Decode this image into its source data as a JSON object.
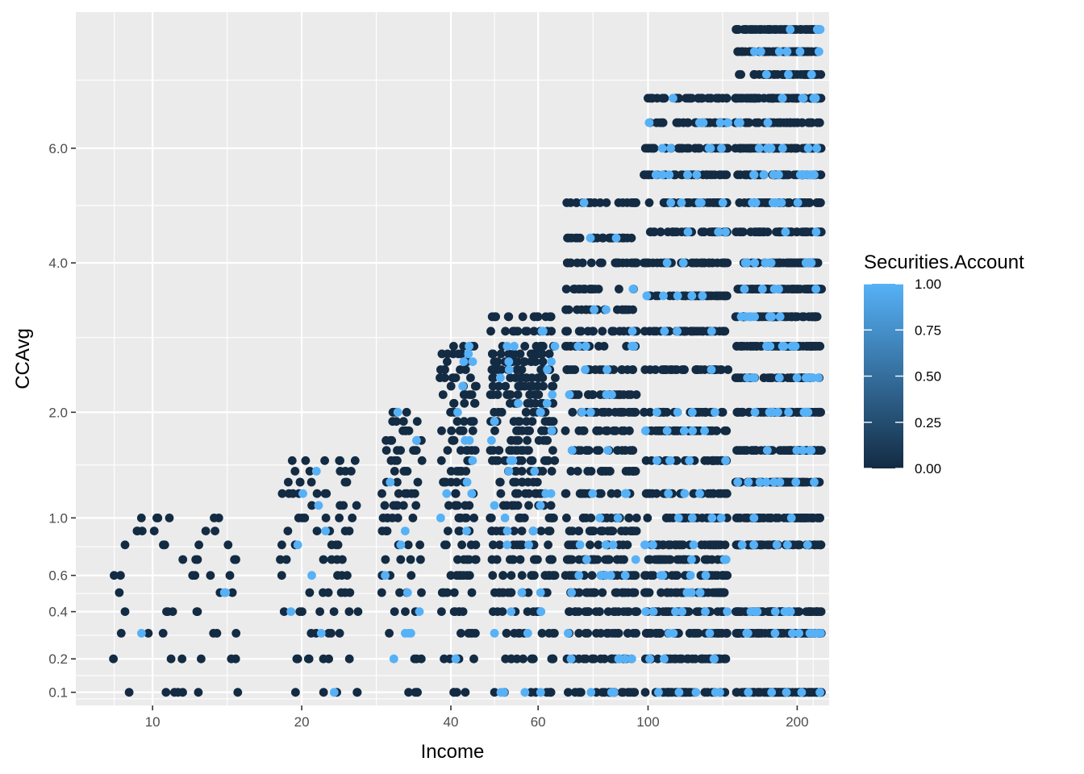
{
  "chart_data": {
    "type": "scatter",
    "xlabel": "Income",
    "ylabel": "CCAvg",
    "x_scale": "log10",
    "y_scale": "sqrt",
    "xlim": [
      7.0,
      232
    ],
    "ylim": [
      0.07,
      8.9
    ],
    "x_ticks": [
      10,
      20,
      40,
      60,
      100,
      200
    ],
    "x_tick_labels": [
      "10",
      "20",
      "40",
      "60",
      "100",
      "200"
    ],
    "y_ticks": [
      0.1,
      0.2,
      0.4,
      0.6,
      1.0,
      2.0,
      4.0,
      6.0
    ],
    "y_tick_labels": [
      "0.1",
      "0.2",
      "0.4",
      "0.6",
      "1.0",
      "2.0",
      "4.0",
      "6.0"
    ],
    "color_by": "Securities.Account",
    "legend": {
      "title": "Securities.Account",
      "position": "right",
      "labels": [
        "1.00",
        "0.75",
        "0.50",
        "0.25",
        "0.00"
      ],
      "values": [
        1.0,
        0.75,
        0.5,
        0.25,
        0.0
      ],
      "low_color": "#132B43",
      "high_color": "#56B1F7"
    },
    "grid": true,
    "background_color": "#EBEBEB",
    "bands": [
      {
        "income": [
          8,
          15
        ],
        "ccavg": [
          0.1,
          0.2,
          0.3,
          0.4,
          0.5,
          0.6,
          0.7,
          0.8,
          0.9,
          1.0
        ]
      },
      {
        "income": [
          18,
          26
        ],
        "ccavg": [
          0.1,
          0.2,
          0.3,
          0.4,
          0.5,
          0.6,
          0.7,
          0.8,
          0.9,
          1.0,
          1.1,
          1.2,
          1.3,
          1.4,
          1.5
        ]
      },
      {
        "income": [
          29,
          35
        ],
        "ccavg": [
          0.1,
          0.2,
          0.3,
          0.4,
          0.5,
          0.6,
          0.7,
          0.8,
          0.9,
          1.0,
          1.1,
          1.2,
          1.3,
          1.4,
          1.5,
          1.6,
          1.7,
          1.8,
          1.9,
          2.0
        ]
      },
      {
        "income": [
          38,
          45
        ],
        "ccavg": [
          0.1,
          0.2,
          0.3,
          0.4,
          0.5,
          0.6,
          0.7,
          0.8,
          0.9,
          1.0,
          1.1,
          1.2,
          1.3,
          1.4,
          1.5,
          1.6,
          1.7,
          1.8,
          1.9,
          2.0,
          2.1,
          2.2,
          2.3,
          2.4,
          2.5,
          2.6,
          2.7,
          2.8
        ]
      },
      {
        "income": [
          48,
          65
        ],
        "ccavg": [
          0.1,
          0.2,
          0.3,
          0.4,
          0.5,
          0.6,
          0.7,
          0.8,
          0.9,
          1.0,
          1.1,
          1.2,
          1.3,
          1.4,
          1.5,
          1.6,
          1.7,
          1.8,
          1.9,
          2.0,
          2.1,
          2.2,
          2.3,
          2.4,
          2.5,
          2.6,
          2.7,
          2.8,
          3.0,
          3.2
        ]
      },
      {
        "income": [
          68,
          95
        ],
        "ccavg": [
          0.1,
          0.2,
          0.3,
          0.4,
          0.5,
          0.6,
          0.7,
          0.8,
          0.9,
          1.0,
          1.2,
          1.4,
          1.6,
          1.8,
          2.0,
          2.2,
          2.5,
          2.8,
          3.0,
          3.3,
          3.6,
          4.0,
          4.4,
          5.0
        ]
      },
      {
        "income": [
          98,
          145
        ],
        "ccavg": [
          0.1,
          0.2,
          0.3,
          0.4,
          0.5,
          0.6,
          0.7,
          0.8,
          1.0,
          1.2,
          1.5,
          1.8,
          2.0,
          2.5,
          3.0,
          3.5,
          4.0,
          4.5,
          5.0,
          5.5,
          6.0,
          6.5,
          7.0
        ]
      },
      {
        "income": [
          150,
          224
        ],
        "ccavg": [
          0.1,
          0.3,
          0.4,
          0.8,
          1.0,
          1.3,
          1.6,
          2.0,
          2.4,
          2.8,
          3.2,
          3.6,
          4.0,
          4.5,
          5.0,
          5.5,
          6.0,
          6.5,
          7.0,
          7.5,
          8.0,
          8.5
        ]
      }
    ]
  }
}
